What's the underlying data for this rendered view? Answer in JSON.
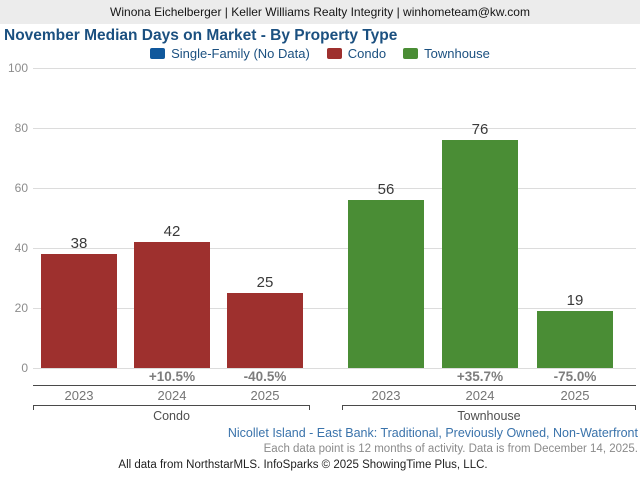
{
  "header": {
    "contact_line": "Winona Eichelberger | Keller Williams Realty Integrity | winhometeam@kw.com"
  },
  "title": "November Median Days on Market - By Property Type",
  "legend": [
    {
      "name": "single-family",
      "label": "Single-Family (No Data)",
      "color": "#10589c"
    },
    {
      "name": "condo",
      "label": "Condo",
      "color": "#9e302e"
    },
    {
      "name": "townhouse",
      "label": "Townhouse",
      "color": "#4a8d35"
    }
  ],
  "chart_data": {
    "type": "bar",
    "title": "November Median Days on Market - By Property Type",
    "xlabel": "",
    "ylabel": "",
    "ylim": [
      0,
      100
    ],
    "yticks": [
      0,
      20,
      40,
      60,
      80,
      100
    ],
    "grid": true,
    "legend_position": "top",
    "categories": [
      "2023",
      "2024",
      "2025"
    ],
    "series": [
      {
        "name": "Single-Family (No Data)",
        "color": "#10589c",
        "values": [
          null,
          null,
          null
        ],
        "pct_change": [
          null,
          null,
          null
        ]
      },
      {
        "name": "Condo",
        "color": "#9e302e",
        "values": [
          38,
          42,
          25
        ],
        "pct_change": [
          null,
          "+10.5%",
          "-40.5%"
        ]
      },
      {
        "name": "Townhouse",
        "color": "#4a8d35",
        "values": [
          56,
          76,
          19
        ],
        "pct_change": [
          null,
          "+35.7%",
          "-75.0%"
        ]
      }
    ]
  },
  "footer": {
    "filter_line": "Nicollet Island - East Bank: Traditional, Previously Owned, Non-Waterfront",
    "data_note": "Each data point is 12 months of activity. Data is from December 14, 2025.",
    "attribution": "All data from NorthstarMLS. InfoSparks © 2025 ShowingTime Plus, LLC."
  }
}
